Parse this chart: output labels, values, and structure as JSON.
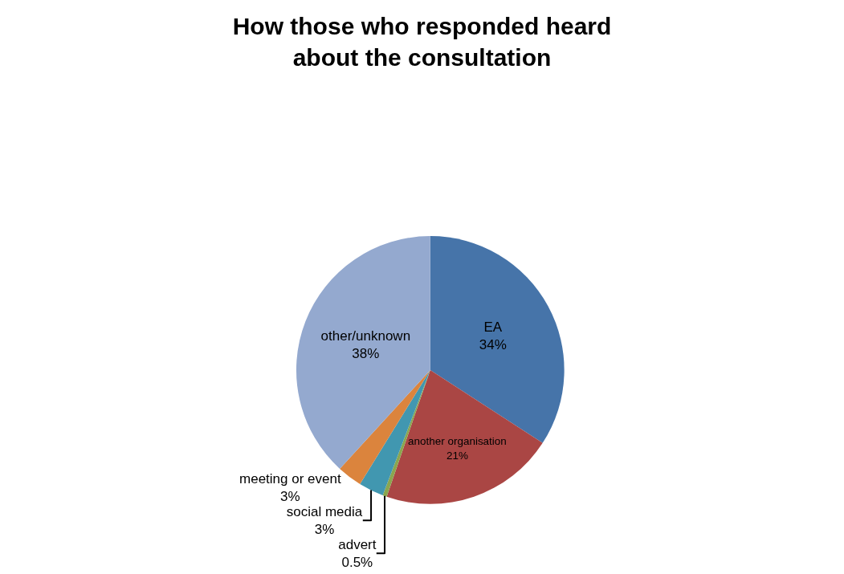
{
  "chart_data": {
    "type": "pie",
    "title": "How those who responded heard about the consultation",
    "categories": [
      "EA",
      "another organisation",
      "advert",
      "social media",
      "meeting or event",
      "other/unknown"
    ],
    "values": [
      34,
      21,
      0.5,
      3,
      3,
      38
    ],
    "colors": [
      "#4674a9",
      "#aa4644",
      "#8aa64f",
      "#4197b0",
      "#db843d",
      "#94a9cf"
    ],
    "value_labels": [
      "34%",
      "21%",
      "0.5%",
      "3%",
      "3%",
      "38%"
    ],
    "legend": false
  }
}
